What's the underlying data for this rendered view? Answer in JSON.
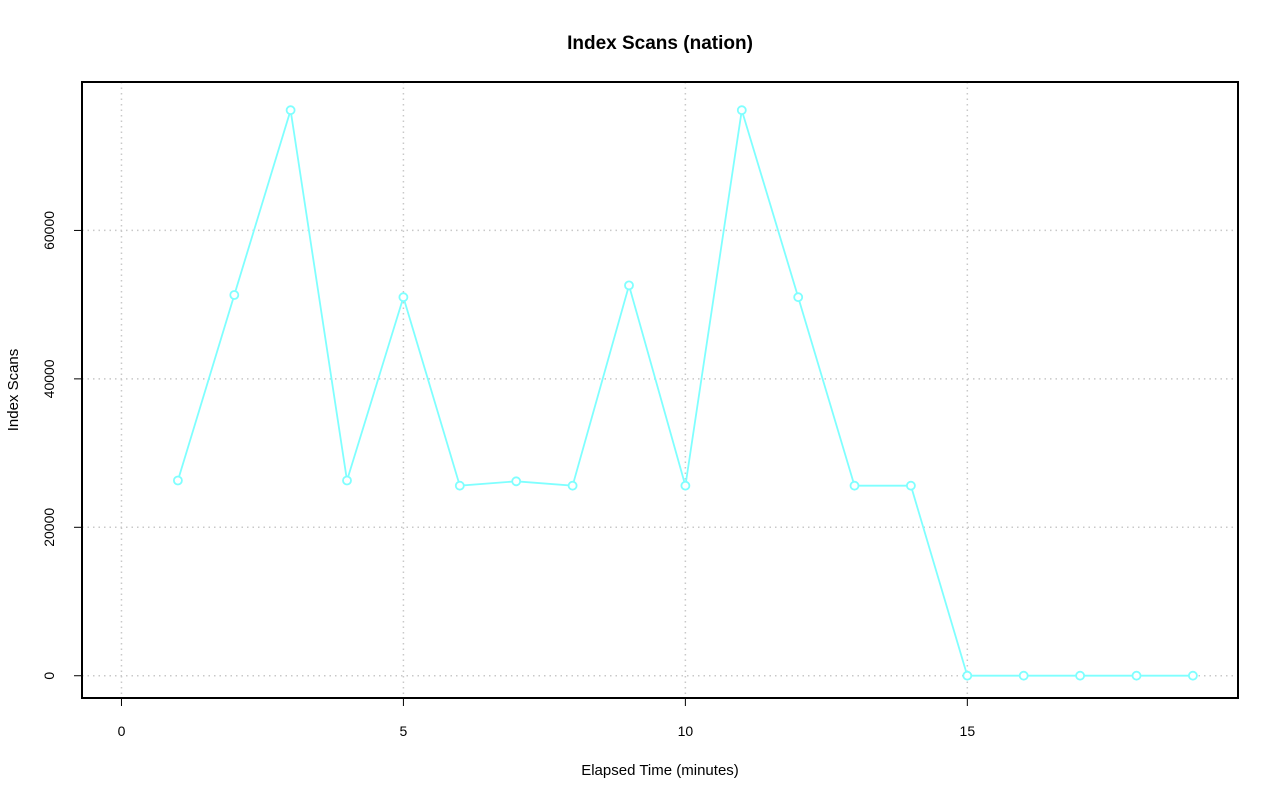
{
  "chart_data": {
    "type": "line",
    "title": "Index Scans (nation)",
    "xlabel": "Elapsed Time (minutes)",
    "ylabel": "Index Scans",
    "xlim": [
      -0.7,
      19.8
    ],
    "ylim": [
      -3000,
      80000
    ],
    "x_ticks": [
      0,
      5,
      10,
      15
    ],
    "y_ticks": [
      0,
      20000,
      40000,
      60000
    ],
    "grid": true,
    "series": [
      {
        "color": "#7fffff",
        "x": [
          1,
          2,
          3,
          4,
          5,
          6,
          7,
          8,
          9,
          10,
          11,
          12,
          13,
          14,
          15,
          16,
          17,
          18,
          19
        ],
        "values": [
          26300,
          51300,
          76200,
          26300,
          51000,
          25600,
          26200,
          25600,
          52600,
          25600,
          76200,
          51000,
          25600,
          25600,
          0,
          0,
          0,
          0,
          0
        ]
      }
    ]
  }
}
